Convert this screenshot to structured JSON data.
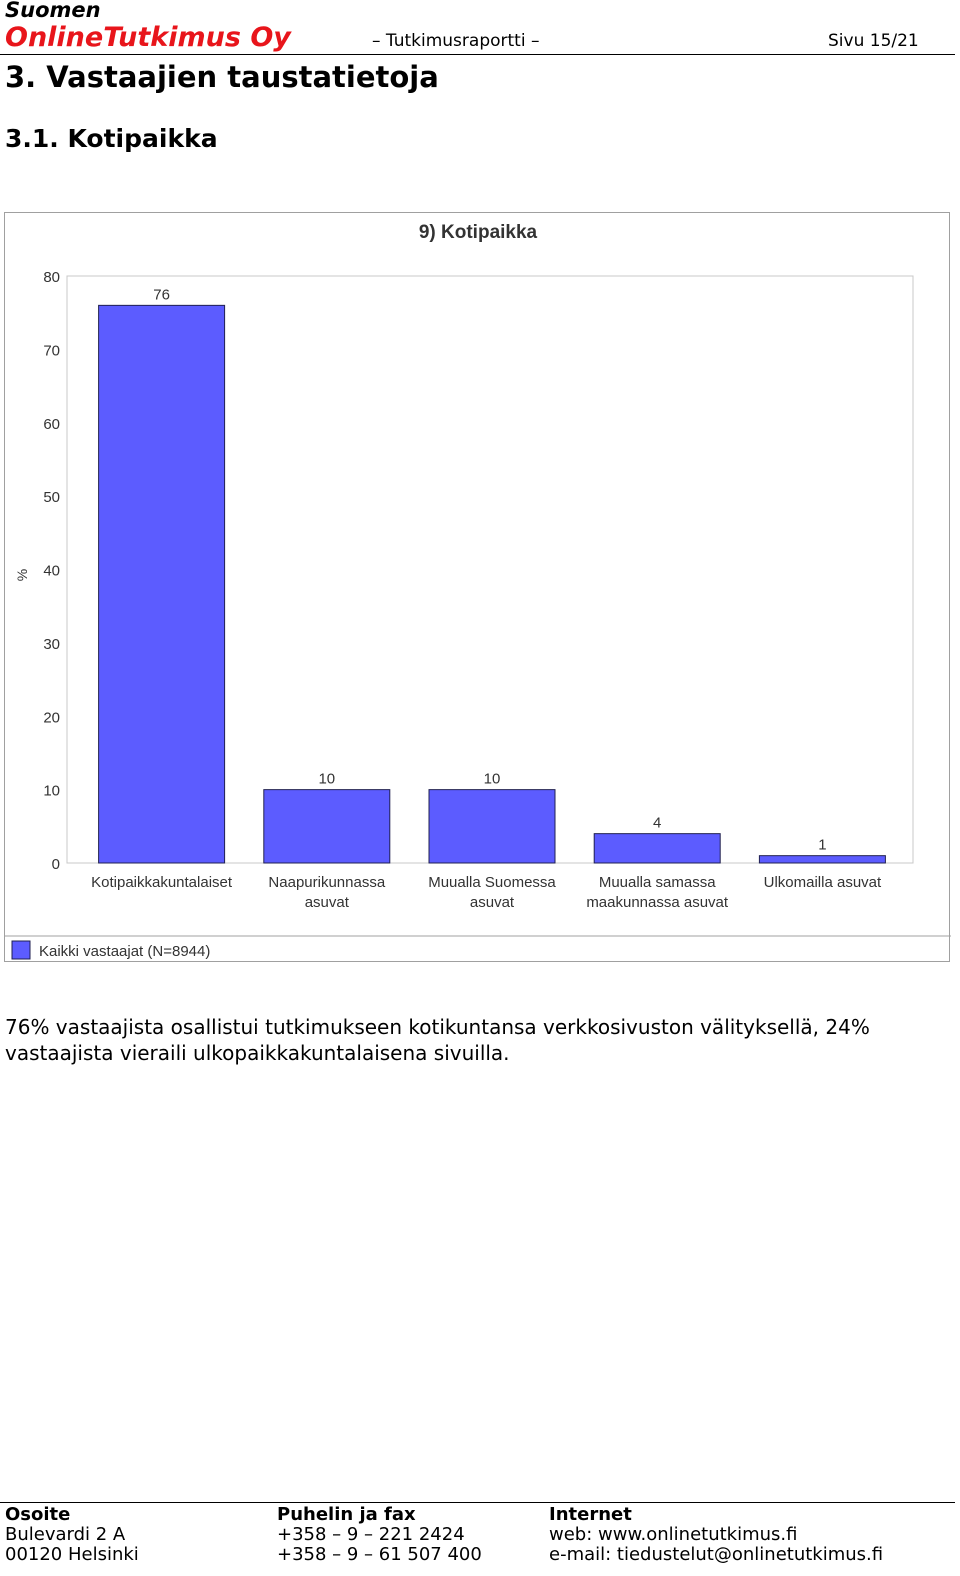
{
  "header": {
    "company_top": "Suomen",
    "company_main": "OnlineTutkimus Oy",
    "doc_type": "– Tutkimusraportti –",
    "page": "Sivu 15/21",
    "accent_color": "#e8151b"
  },
  "section_title": "3. Vastaajien taustatietoja",
  "subsection_title": "3.1. Kotipaikka",
  "chart_data": {
    "type": "bar",
    "title": "9) Kotipaikka",
    "ylabel": "%",
    "xlabel": "",
    "ylim": [
      0,
      80
    ],
    "yticks": [
      0,
      10,
      20,
      30,
      40,
      50,
      60,
      70,
      80
    ],
    "grid": false,
    "legend_position": "bottom-left",
    "categories": [
      [
        "Kotipaikkakuntalaiset"
      ],
      [
        "Naapurikunnassa",
        "asuvat"
      ],
      [
        "Muualla Suomessa",
        "asuvat"
      ],
      [
        "Muualla samassa",
        "maakunnassa asuvat"
      ],
      [
        "Ulkomailla asuvat"
      ]
    ],
    "series": [
      {
        "name": "Kaikki vastaajat (N=8944)",
        "color": "#5c5cff",
        "values": [
          76,
          10,
          10,
          4,
          1
        ]
      }
    ]
  },
  "body_text": "76% vastaajista osallistui tutkimukseen kotikuntansa verkkosivuston välityksellä, 24% vastaajista vieraili ulkopaikkakuntalaisena sivuilla.",
  "footer": {
    "address": {
      "heading": "Osoite",
      "lines": [
        "Bulevardi 2 A",
        "00120 Helsinki"
      ]
    },
    "phone": {
      "heading": "Puhelin ja fax",
      "lines": [
        "+358 – 9 – 221 2424",
        "+358 – 9 – 61 507 400"
      ]
    },
    "internet": {
      "heading": "Internet",
      "lines": [
        "web: www.onlinetutkimus.fi",
        "e-mail: tiedustelut@onlinetutkimus.fi"
      ]
    }
  }
}
